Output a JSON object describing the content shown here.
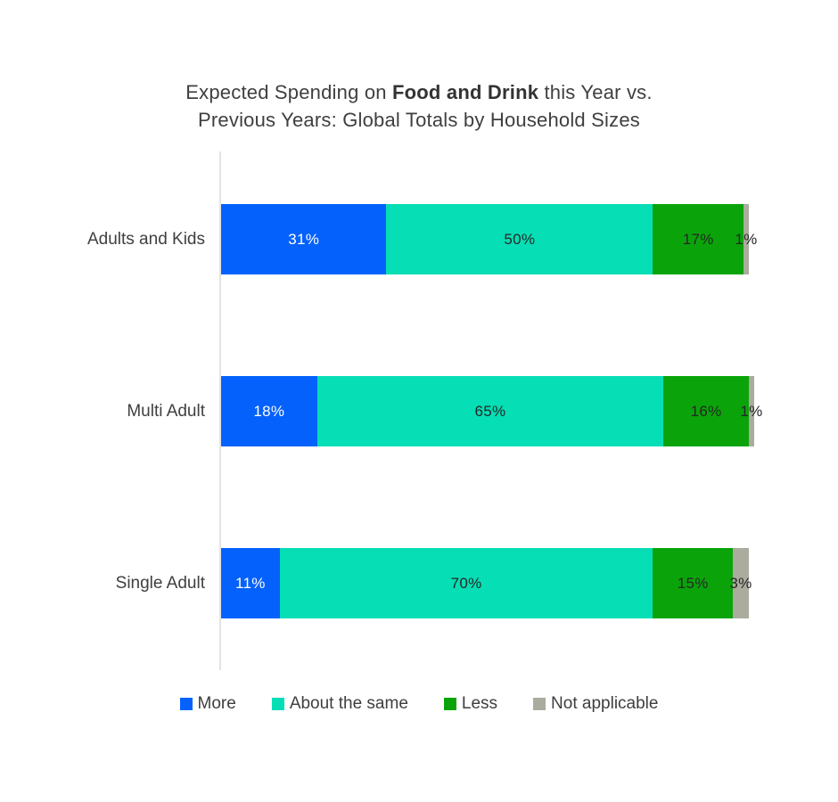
{
  "title": {
    "line1_prefix": "Expected Spending on ",
    "line1_bold": "Food and Drink",
    "line1_suffix": " this Year vs.",
    "line2": "Previous Years: Global Totals by Household Sizes"
  },
  "colors": {
    "more": "#0561fc",
    "about_the_same": "#06deb5",
    "less": "#0aa40a",
    "not_applicable": "#abab9e",
    "axis_line": "#e3e3e3",
    "title_text": "#3f3f3f",
    "value_label_on_blue": "#ffffff",
    "value_label_dark": "#262626"
  },
  "legend": {
    "position": "bottom",
    "items": [
      {
        "label": "More",
        "color": "#0561fc"
      },
      {
        "label": "About the same",
        "color": "#06deb5"
      },
      {
        "label": "Less",
        "color": "#0aa40a"
      },
      {
        "label": "Not applicable",
        "color": "#abab9e"
      }
    ]
  },
  "chart_data": {
    "type": "bar",
    "orientation": "horizontal-stacked",
    "title": "Expected Spending on Food and Drink this Year vs. Previous Years: Global Totals by Household Sizes",
    "categories": [
      "Adults and Kids",
      "Multi Adult",
      "Single Adult"
    ],
    "series": [
      {
        "name": "More",
        "color": "#0561fc",
        "label_color": "#ffffff",
        "values": [
          31,
          18,
          11
        ]
      },
      {
        "name": "About the same",
        "color": "#06deb5",
        "label_color": "#262626",
        "values": [
          50,
          65,
          70
        ]
      },
      {
        "name": "Less",
        "color": "#0aa40a",
        "label_color": "#262626",
        "values": [
          17,
          16,
          15
        ]
      },
      {
        "name": "Not applicable",
        "color": "#abab9e",
        "label_color": "#262626",
        "values": [
          1,
          1,
          3
        ]
      }
    ],
    "value_suffix": "%",
    "xlim": [
      0,
      100
    ],
    "grid": false,
    "legend_position": "bottom"
  }
}
